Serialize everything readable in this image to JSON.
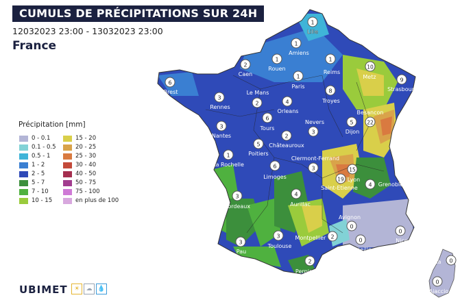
{
  "header": {
    "title": "CUMULS DE PRÉCIPITATIONS SUR 24H",
    "date_range": "12032023 23:00 - 13032023 23:00",
    "region": "France"
  },
  "legend": {
    "title": "Précipitation [mm]",
    "items": [
      {
        "label": "0 - 0.1",
        "color": "#b3b5d6"
      },
      {
        "label": "0.1 - 0.5",
        "color": "#82d2d6"
      },
      {
        "label": "0.5 - 1",
        "color": "#3fb4d8"
      },
      {
        "label": "1 - 2",
        "color": "#3a7fd2"
      },
      {
        "label": "2 - 5",
        "color": "#2f4ab8"
      },
      {
        "label": "5 - 7",
        "color": "#3c8f3c"
      },
      {
        "label": "7 - 10",
        "color": "#4fb13f"
      },
      {
        "label": "10 - 15",
        "color": "#9acb3c"
      },
      {
        "label": "15 - 20",
        "color": "#d9cf4a"
      },
      {
        "label": "20 - 25",
        "color": "#d9a34a"
      },
      {
        "label": "25 - 30",
        "color": "#d97a40"
      },
      {
        "label": "30 - 40",
        "color": "#c34a3a"
      },
      {
        "label": "40 - 50",
        "color": "#a52f4f"
      },
      {
        "label": "50 - 75",
        "color": "#a23d8f"
      },
      {
        "label": "75 - 100",
        "color": "#cf7ad6"
      },
      {
        "label": "en plus de 100",
        "color": "#d8a8de"
      }
    ]
  },
  "cities": [
    {
      "name": "Lille",
      "value": "1"
    },
    {
      "name": "Amiens",
      "value": "1"
    },
    {
      "name": "Rouen",
      "value": "1"
    },
    {
      "name": "Caen",
      "value": "2"
    },
    {
      "name": "Brest",
      "value": "6"
    },
    {
      "name": "Reims",
      "value": "1"
    },
    {
      "name": "Metz",
      "value": "10"
    },
    {
      "name": "Strasbourg",
      "value": "9"
    },
    {
      "name": "Paris",
      "value": "1"
    },
    {
      "name": "Le Mans",
      "value": "2"
    },
    {
      "name": "Rennes",
      "value": "3"
    },
    {
      "name": "Orleans",
      "value": "4"
    },
    {
      "name": "Troyes",
      "value": "8"
    },
    {
      "name": "Besancon",
      "value": "22"
    },
    {
      "name": "Dijon",
      "value": "5"
    },
    {
      "name": "Nevers",
      "value": "3"
    },
    {
      "name": "Tours",
      "value": "6"
    },
    {
      "name": "Nantes",
      "value": "3"
    },
    {
      "name": "Châteauroux",
      "value": "2"
    },
    {
      "name": "Poitiers",
      "value": "5"
    },
    {
      "name": "La Rochelle",
      "value": "1"
    },
    {
      "name": "Limoges",
      "value": "6"
    },
    {
      "name": "Clermont-Ferrand",
      "value": "3"
    },
    {
      "name": "Lyon",
      "value": "15"
    },
    {
      "name": "Saint-Etienne",
      "value": "19"
    },
    {
      "name": "Grenoble",
      "value": "4"
    },
    {
      "name": "Bordeaux",
      "value": "3"
    },
    {
      "name": "Aurillac",
      "value": "4"
    },
    {
      "name": "Avignon",
      "value": "0"
    },
    {
      "name": "Nice",
      "value": "0"
    },
    {
      "name": "Marseille",
      "value": "0"
    },
    {
      "name": "Montpellier",
      "value": "2"
    },
    {
      "name": "Toulouse",
      "value": "3"
    },
    {
      "name": "Pau",
      "value": "3"
    },
    {
      "name": "Perpignan",
      "value": "2"
    },
    {
      "name": "Bastia",
      "value": "0"
    },
    {
      "name": "Ajaccio",
      "value": "0"
    }
  ],
  "brand": {
    "name": "UBIMET"
  }
}
